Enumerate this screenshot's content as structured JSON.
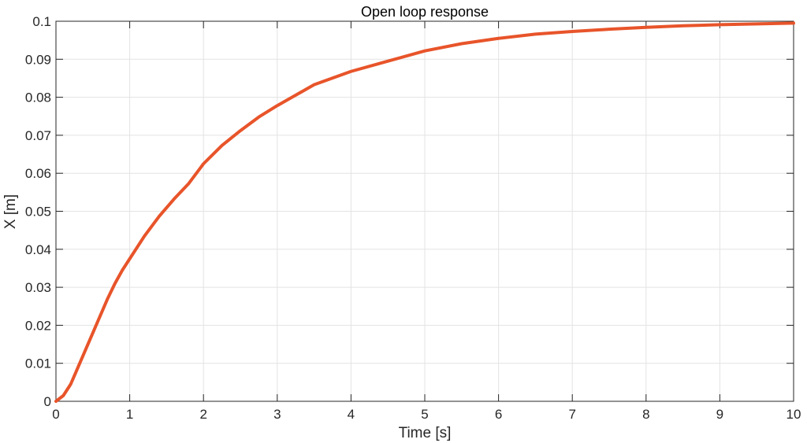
{
  "chart_data": {
    "type": "line",
    "title": "Open loop response",
    "xlabel": "Time [s]",
    "ylabel": "X [m]",
    "xlim": [
      0,
      10
    ],
    "ylim": [
      0,
      0.1
    ],
    "xticks": [
      "0",
      "1",
      "2",
      "3",
      "4",
      "5",
      "6",
      "7",
      "8",
      "9",
      "10"
    ],
    "yticks": [
      "0",
      "0.01",
      "0.02",
      "0.03",
      "0.04",
      "0.05",
      "0.06",
      "0.07",
      "0.08",
      "0.09",
      "0.1"
    ],
    "grid": true,
    "series": [
      {
        "color": "#e8542a",
        "x": [
          0,
          0.1,
          0.2,
          0.3,
          0.4,
          0.5,
          0.6,
          0.7,
          0.8,
          0.9,
          1.0,
          1.2,
          1.4,
          1.6,
          1.8,
          2.0,
          2.25,
          2.5,
          2.75,
          3.0,
          3.5,
          4.0,
          4.5,
          5.0,
          5.5,
          6.0,
          6.5,
          7.0,
          7.5,
          8.0,
          8.5,
          9.0,
          9.5,
          10.0
        ],
        "y": [
          0,
          0.0015,
          0.0045,
          0.009,
          0.0135,
          0.018,
          0.0225,
          0.027,
          0.031,
          0.0345,
          0.0375,
          0.0435,
          0.0487,
          0.0532,
          0.0573,
          0.0625,
          0.0673,
          0.0712,
          0.0748,
          0.0778,
          0.0833,
          0.0868,
          0.0895,
          0.0922,
          0.0941,
          0.0955,
          0.0966,
          0.0973,
          0.0979,
          0.0984,
          0.0988,
          0.0991,
          0.0993,
          0.0995
        ]
      }
    ]
  }
}
